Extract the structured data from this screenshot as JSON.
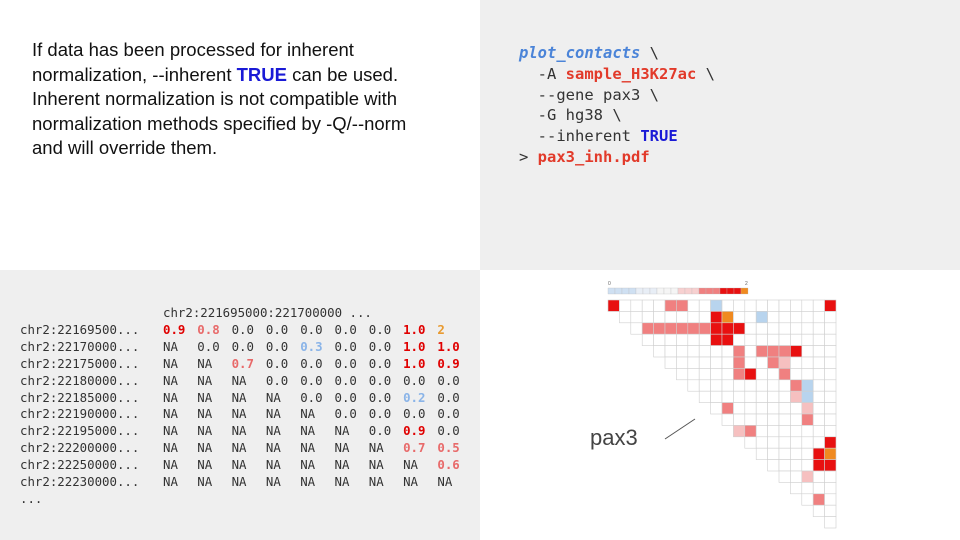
{
  "description": {
    "line1": "If data has been processed for inherent",
    "line2_pre": "normalization, --inherent ",
    "line2_kw": "TRUE",
    "line2_post": " can be used.",
    "line3": "Inherent normalization is not compatible with",
    "line4": "normalization methods specified by -Q/--norm",
    "line5": "and will override them."
  },
  "code": {
    "cmd": "plot_contacts",
    "cont": " \\",
    "flag_a": "  -A ",
    "val_a": "sample_H3K27ac",
    "flag_gene": "  --gene pax3 \\",
    "flag_g": "  -G hg38 \\",
    "flag_inh": "  --inherent ",
    "val_inh": "TRUE",
    "redirect": "> ",
    "outfile": "pax3_inh.pdf"
  },
  "matrix": {
    "header": "chr2:221695000:221700000 ...",
    "rows": [
      {
        "label": "chr2:22169500...",
        "cells": [
          [
            "0.9",
            "v-red"
          ],
          [
            "0.8",
            "v-lightred"
          ],
          [
            "0.0",
            ""
          ],
          [
            "0.0",
            ""
          ],
          [
            "0.0",
            ""
          ],
          [
            "0.0",
            ""
          ],
          [
            "0.0",
            ""
          ],
          [
            "1.0",
            "v-red"
          ],
          [
            "2",
            "v-orange"
          ]
        ]
      },
      {
        "label": "chr2:22170000...",
        "cells": [
          [
            "NA",
            ""
          ],
          [
            "0.0",
            ""
          ],
          [
            "0.0",
            ""
          ],
          [
            "0.0",
            ""
          ],
          [
            "0.3",
            "v-blue"
          ],
          [
            "0.0",
            ""
          ],
          [
            "0.0",
            ""
          ],
          [
            "1.0",
            "v-red"
          ],
          [
            "1.0",
            "v-red"
          ]
        ]
      },
      {
        "label": "chr2:22175000...",
        "cells": [
          [
            "NA",
            ""
          ],
          [
            "NA",
            ""
          ],
          [
            "0.7",
            "v-lightred"
          ],
          [
            "0.0",
            ""
          ],
          [
            "0.0",
            ""
          ],
          [
            "0.0",
            ""
          ],
          [
            "0.0",
            ""
          ],
          [
            "1.0",
            "v-red"
          ],
          [
            "0.9",
            "v-red"
          ]
        ]
      },
      {
        "label": "chr2:22180000...",
        "cells": [
          [
            "NA",
            ""
          ],
          [
            "NA",
            ""
          ],
          [
            "NA",
            ""
          ],
          [
            "0.0",
            ""
          ],
          [
            "0.0",
            ""
          ],
          [
            "0.0",
            ""
          ],
          [
            "0.0",
            ""
          ],
          [
            "0.0",
            ""
          ],
          [
            "0.0",
            ""
          ]
        ]
      },
      {
        "label": "chr2:22185000...",
        "cells": [
          [
            "NA",
            ""
          ],
          [
            "NA",
            ""
          ],
          [
            "NA",
            ""
          ],
          [
            "NA",
            ""
          ],
          [
            "0.0",
            ""
          ],
          [
            "0.0",
            ""
          ],
          [
            "0.0",
            ""
          ],
          [
            "0.2",
            "v-blue"
          ],
          [
            "0.0",
            ""
          ]
        ]
      },
      {
        "label": "chr2:22190000...",
        "cells": [
          [
            "NA",
            ""
          ],
          [
            "NA",
            ""
          ],
          [
            "NA",
            ""
          ],
          [
            "NA",
            ""
          ],
          [
            "NA",
            ""
          ],
          [
            "0.0",
            ""
          ],
          [
            "0.0",
            ""
          ],
          [
            "0.0",
            ""
          ],
          [
            "0.0",
            ""
          ]
        ]
      },
      {
        "label": "chr2:22195000...",
        "cells": [
          [
            "NA",
            ""
          ],
          [
            "NA",
            ""
          ],
          [
            "NA",
            ""
          ],
          [
            "NA",
            ""
          ],
          [
            "NA",
            ""
          ],
          [
            "NA",
            ""
          ],
          [
            "0.0",
            ""
          ],
          [
            "0.9",
            "v-red"
          ],
          [
            "0.0",
            ""
          ]
        ]
      },
      {
        "label": "chr2:22200000...",
        "cells": [
          [
            "NA",
            ""
          ],
          [
            "NA",
            ""
          ],
          [
            "NA",
            ""
          ],
          [
            "NA",
            ""
          ],
          [
            "NA",
            ""
          ],
          [
            "NA",
            ""
          ],
          [
            "NA",
            ""
          ],
          [
            "0.7",
            "v-lightred"
          ],
          [
            "0.5",
            "v-lightred"
          ]
        ]
      },
      {
        "label": "chr2:22250000...",
        "cells": [
          [
            "NA",
            ""
          ],
          [
            "NA",
            ""
          ],
          [
            "NA",
            ""
          ],
          [
            "NA",
            ""
          ],
          [
            "NA",
            ""
          ],
          [
            "NA",
            ""
          ],
          [
            "NA",
            ""
          ],
          [
            "NA",
            ""
          ],
          [
            "0.6",
            "v-lightred"
          ]
        ]
      },
      {
        "label": "chr2:22230000...",
        "cells": [
          [
            "NA",
            ""
          ],
          [
            "NA",
            ""
          ],
          [
            "NA",
            ""
          ],
          [
            "NA",
            ""
          ],
          [
            "NA",
            ""
          ],
          [
            "NA",
            ""
          ],
          [
            "NA",
            ""
          ],
          [
            "NA",
            ""
          ],
          [
            "NA",
            ""
          ]
        ]
      }
    ],
    "ellipsis": "..."
  },
  "heatmap": {
    "scale_min": "0",
    "scale_max": "2",
    "gene_label": "pax3",
    "colors": {
      "red": "#e81010",
      "lightred": "#f08080",
      "pink": "#f6c0c0",
      "blue": "#b8d4ee",
      "orange": "#f08a20"
    }
  }
}
